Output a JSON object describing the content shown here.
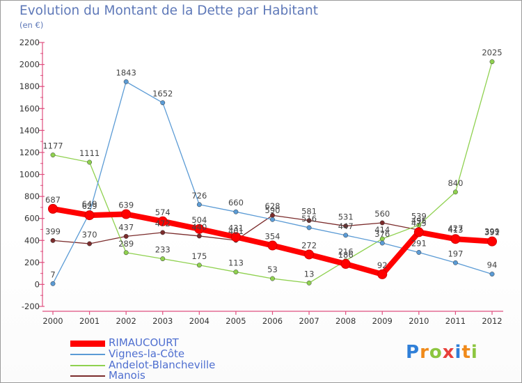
{
  "title": "Evolution du Montant de la Dette par Habitant",
  "subtitle": "(en €)",
  "logo": "Proxiti",
  "chart_data": {
    "type": "line",
    "x": [
      "2000",
      "2001",
      "2002",
      "2003",
      "2004",
      "2005",
      "2006",
      "2007",
      "2008",
      "2009",
      "2010",
      "2011",
      "2012"
    ],
    "ylim": [
      -200,
      2200
    ],
    "yticks": [
      -200,
      0,
      200,
      400,
      600,
      800,
      1000,
      1200,
      1400,
      1600,
      1800,
      2000,
      2200
    ],
    "grid": false,
    "legend_position": "bottom-left",
    "series": [
      {
        "name": "RIMAUCOURT",
        "color": "#ff0000",
        "values": [
          687,
          629,
          639,
          574,
          504,
          431,
          354,
          272,
          186,
          92,
          475,
          413,
          391
        ]
      },
      {
        "name": "Vignes-la-Côte",
        "color": "#5b9bd5",
        "values": [
          7,
          649,
          1843,
          1652,
          726,
          660,
          590,
          516,
          447,
          376,
          291,
          197,
          94
        ]
      },
      {
        "name": "Andelot-Blancheville",
        "color": "#8fd14f",
        "values": [
          1177,
          1111,
          289,
          233,
          175,
          113,
          53,
          13,
          216,
          414,
          539,
          840,
          2025
        ]
      },
      {
        "name": "Manois",
        "color": "#7b2c2c",
        "values": [
          399,
          370,
          437,
          472,
          440,
          401,
          628,
          581,
          531,
          560,
          495,
          427,
          399
        ]
      }
    ]
  }
}
